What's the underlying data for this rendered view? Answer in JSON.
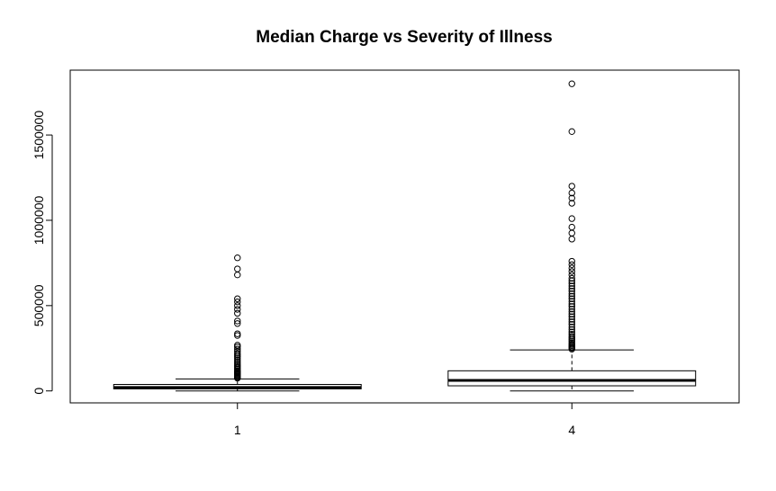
{
  "chart_data": {
    "type": "boxplot",
    "title": "Median Charge vs Severity of Illness",
    "xlabel": "",
    "ylabel": "",
    "ylim": [
      -70000,
      1880000
    ],
    "y_ticks": [
      0,
      500000,
      1000000,
      1500000
    ],
    "y_tick_labels": [
      "0",
      "500000",
      "1000000",
      "1500000"
    ],
    "categories": [
      "1",
      "4"
    ],
    "series": [
      {
        "category": "1",
        "whisker_low": 0,
        "q1": 12000,
        "median": 20000,
        "q3": 38000,
        "whisker_high": 70000,
        "outliers": [
          75000,
          80000,
          85000,
          90000,
          95000,
          100000,
          105000,
          110000,
          115000,
          120000,
          128000,
          135000,
          142000,
          150000,
          160000,
          170000,
          180000,
          190000,
          200000,
          210000,
          220000,
          232000,
          245000,
          258000,
          268000,
          325000,
          335000,
          395000,
          410000,
          455000,
          478000,
          500000,
          522000,
          540000,
          680000,
          715000,
          780000
        ]
      },
      {
        "category": "4",
        "whisker_low": 0,
        "q1": 30000,
        "median": 62000,
        "q3": 118000,
        "whisker_high": 240000,
        "outliers": [
          245000,
          252000,
          258000,
          265000,
          272000,
          280000,
          290000,
          300000,
          310000,
          320000,
          332000,
          345000,
          360000,
          375000,
          390000,
          405000,
          420000,
          435000,
          450000,
          465000,
          480000,
          495000,
          510000,
          525000,
          540000,
          555000,
          570000,
          585000,
          600000,
          615000,
          630000,
          645000,
          660000,
          680000,
          700000,
          720000,
          740000,
          760000,
          890000,
          925000,
          960000,
          1010000,
          1100000,
          1130000,
          1160000,
          1200000,
          1520000,
          1800000
        ]
      }
    ]
  }
}
